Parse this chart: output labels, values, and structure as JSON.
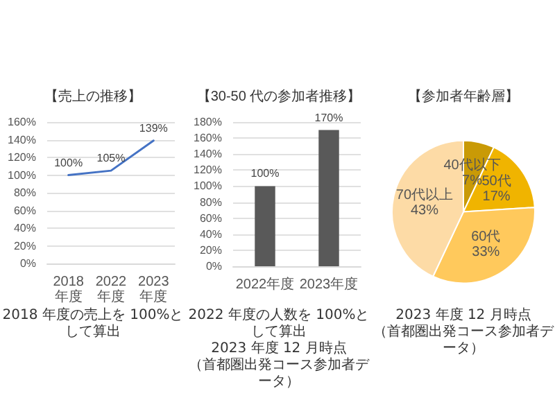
{
  "chart_data": [
    {
      "type": "line",
      "title": "【売上の推移】",
      "categories": [
        "2018年度",
        "2022年度",
        "2023年度"
      ],
      "series": [
        {
          "color": "#4472c4",
          "values": [
            100,
            105,
            139
          ],
          "value_labels": [
            "100%",
            "105%",
            "139%"
          ]
        }
      ],
      "ylim": [
        0,
        160
      ],
      "yticks": [
        {
          "value": 0,
          "label": "0%"
        },
        {
          "value": 20,
          "label": "20%"
        },
        {
          "value": 40,
          "label": "40%"
        },
        {
          "value": 60,
          "label": "60%"
        },
        {
          "value": 80,
          "label": "80%"
        },
        {
          "value": 100,
          "label": "100%"
        },
        {
          "value": 120,
          "label": "120%"
        },
        {
          "value": 140,
          "label": "140%"
        },
        {
          "value": 160,
          "label": "160%"
        }
      ],
      "grid": "y",
      "legend": false,
      "marker": "none",
      "line_style": "solid",
      "annotations": [
        "2018 年度の売上を 100%として算出"
      ]
    },
    {
      "type": "bar",
      "title": "【30-50 代の参加者推移】",
      "categories": [
        "2022年度",
        "2023年度"
      ],
      "series": [
        {
          "color": "#595959",
          "values": [
            100,
            170
          ],
          "value_labels": [
            "100%",
            "170%"
          ]
        }
      ],
      "ylim": [
        0,
        180
      ],
      "yticks": [
        {
          "value": 0,
          "label": "0%"
        },
        {
          "value": 20,
          "label": "20%"
        },
        {
          "value": 40,
          "label": "40%"
        },
        {
          "value": 60,
          "label": "60%"
        },
        {
          "value": 80,
          "label": "80%"
        },
        {
          "value": 100,
          "label": "100%"
        },
        {
          "value": 120,
          "label": "120%"
        },
        {
          "value": 140,
          "label": "140%"
        },
        {
          "value": 160,
          "label": "160%"
        },
        {
          "value": 180,
          "label": "180%"
        }
      ],
      "grid": "y",
      "legend": false,
      "annotations": [
        "2022 年度の人数を 100%として算出",
        "2023 年度 12 月時点",
        "（首都圏出発コース参加者データ）"
      ]
    },
    {
      "type": "pie",
      "title": "【参加者年齢層】",
      "categories": [
        "40代以下",
        "50代",
        "60代",
        "70代以上"
      ],
      "values": [
        7,
        17,
        33,
        43
      ],
      "value_labels": [
        "7%",
        "17%",
        "33%",
        "43%"
      ],
      "colors": [
        "#c99a06",
        "#f0b400",
        "#ffc95c",
        "#fddba6"
      ],
      "legend": false,
      "annotations": [
        "2023 年度 12 月時点",
        "（首都圏出発コース参加者データ）"
      ]
    }
  ]
}
